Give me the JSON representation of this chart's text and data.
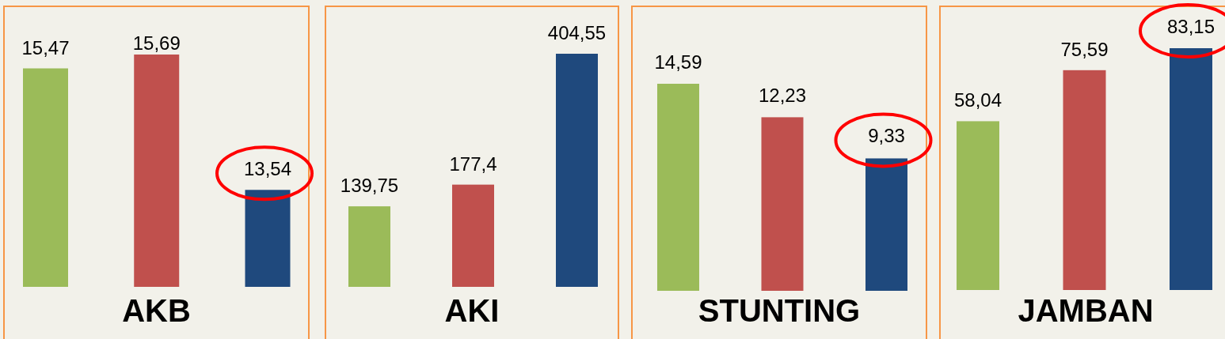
{
  "chart_data": [
    {
      "type": "bar",
      "title": "AKB",
      "categories": [
        null,
        null,
        null
      ],
      "values": [
        15.47,
        15.69,
        13.54
      ],
      "colors": [
        "#9bbb59",
        "#c0504d",
        "#1f497d"
      ],
      "value_labels": [
        "15,47",
        "15,69",
        "13,54"
      ],
      "ylim": [
        12,
        15.69
      ]
    },
    {
      "type": "bar",
      "title": "AKI",
      "categories": [
        null,
        null,
        null
      ],
      "values": [
        139.75,
        177.4,
        404.55
      ],
      "colors": [
        "#9bbb59",
        "#c0504d",
        "#1f497d"
      ],
      "value_labels": [
        "139,75",
        "177,4",
        "404,55"
      ]
    },
    {
      "type": "bar",
      "title": "STUNTING",
      "categories": [
        null,
        null,
        null
      ],
      "values": [
        14.59,
        12.23,
        9.33
      ],
      "colors": [
        "#9bbb59",
        "#c0504d",
        "#1f497d"
      ],
      "value_labels": [
        "14,59",
        "12,23",
        "9,33"
      ]
    },
    {
      "type": "bar",
      "title": "JAMBAN",
      "categories": [
        null,
        null,
        null
      ],
      "values": [
        58.04,
        75.59,
        83.15
      ],
      "colors": [
        "#9bbb59",
        "#c0504d",
        "#1f497d"
      ],
      "value_labels": [
        "58,04",
        "75,59",
        "83,15"
      ]
    }
  ]
}
